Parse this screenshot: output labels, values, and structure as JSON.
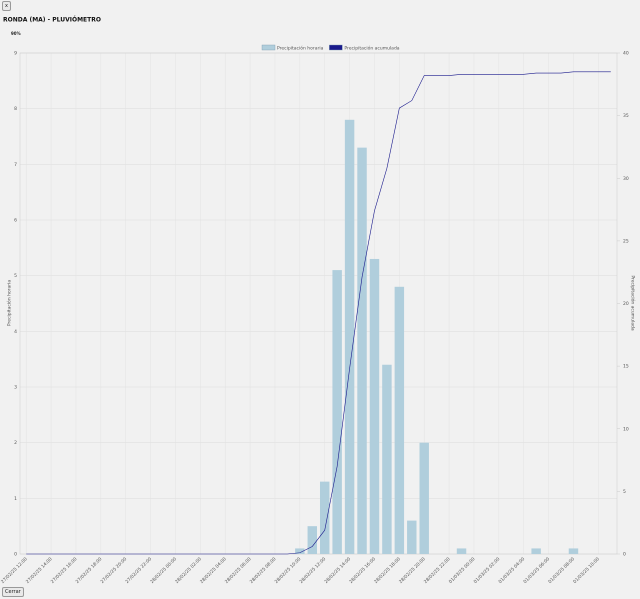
{
  "top_button": "x",
  "note": "90%",
  "close_button": "Cerrar",
  "chart_data": {
    "type": "bar",
    "title": "RONDA (MA) - PLUVIÓMETRO",
    "categories": [
      "27/02/25 12:00",
      null,
      "27/02/25 14:00",
      null,
      "27/02/25 16:00",
      null,
      "27/02/25 18:00",
      null,
      "27/02/25 20:00",
      null,
      "27/02/25 22:00",
      null,
      "28/02/25 00:00",
      null,
      "28/02/25 02:00",
      null,
      "28/02/25 04:00",
      null,
      "28/02/25 06:00",
      null,
      "28/02/25 08:00",
      null,
      "28/02/25 10:00",
      null,
      "28/02/25 12:00",
      null,
      "28/02/25 14:00",
      null,
      "28/02/25 16:00",
      null,
      "28/02/25 18:00",
      null,
      "28/02/25 20:00",
      null,
      "28/02/25 22:00",
      null,
      "01/03/25 00:00",
      null,
      "01/03/25 02:00",
      null,
      "01/03/25 04:00",
      null,
      "01/03/25 06:00",
      null,
      "01/03/25 08:00",
      null,
      "01/03/25 10:00",
      null
    ],
    "series": [
      {
        "name": "Precipitación horaria",
        "color": "#b0cedc",
        "values": [
          0,
          0,
          0,
          0,
          0,
          0,
          0,
          0,
          0,
          0,
          0,
          0,
          0,
          0,
          0,
          0,
          0,
          0,
          0,
          0,
          0,
          0,
          0.1,
          0.5,
          1.3,
          5.1,
          7.8,
          7.3,
          5.3,
          3.4,
          4.8,
          0.6,
          2.0,
          0,
          0,
          0.1,
          0,
          0,
          0,
          0,
          0,
          0.1,
          0,
          0,
          0.1,
          0,
          0,
          0
        ]
      },
      {
        "name": "Precipitación acumulada",
        "color": "#1a1a8c",
        "type": "line",
        "axis": "y2",
        "values": [
          0,
          0,
          0,
          0,
          0,
          0,
          0,
          0,
          0,
          0,
          0,
          0,
          0,
          0,
          0,
          0,
          0,
          0,
          0,
          0,
          0,
          0,
          0.1,
          0.6,
          1.9,
          7.0,
          14.8,
          22.1,
          27.4,
          30.8,
          35.6,
          36.2,
          38.2,
          38.2,
          38.2,
          38.3,
          38.3,
          38.3,
          38.3,
          38.3,
          38.3,
          38.4,
          38.4,
          38.4,
          38.5,
          38.5,
          38.5,
          38.5
        ]
      }
    ],
    "y_label": "Precipitación horaria",
    "y2_label": "Precipitación acumulada",
    "ylim": [
      0,
      9
    ],
    "yticks": [
      0,
      1,
      2,
      3,
      4,
      5,
      6,
      7,
      8,
      9
    ],
    "y2lim": [
      0,
      40
    ],
    "y2ticks": [
      0,
      5,
      10,
      15,
      20,
      25,
      30,
      35,
      40
    ],
    "grid": true,
    "legend": "top"
  }
}
